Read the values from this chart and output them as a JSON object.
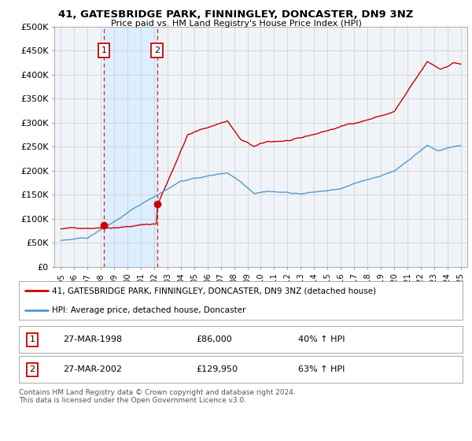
{
  "title1": "41, GATESBRIDGE PARK, FINNINGLEY, DONCASTER, DN9 3NZ",
  "title2": "Price paid vs. HM Land Registry's House Price Index (HPI)",
  "legend_label1": "41, GATESBRIDGE PARK, FINNINGLEY, DONCASTER, DN9 3NZ (detached house)",
  "legend_label2": "HPI: Average price, detached house, Doncaster",
  "sale1_date": "27-MAR-1998",
  "sale1_price": "£86,000",
  "sale1_hpi": "40% ↑ HPI",
  "sale2_date": "27-MAR-2002",
  "sale2_price": "£129,950",
  "sale2_hpi": "63% ↑ HPI",
  "footnote": "Contains HM Land Registry data © Crown copyright and database right 2024.\nThis data is licensed under the Open Government Licence v3.0.",
  "line1_color": "#cc0000",
  "line2_color": "#5599cc",
  "shade_color": "#ddeeff",
  "background_color": "#ffffff",
  "grid_color": "#cccccc",
  "sale_vline_color": "#cc0000",
  "ylim": [
    0,
    500000
  ],
  "ytick_vals": [
    0,
    50000,
    100000,
    150000,
    200000,
    250000,
    300000,
    350000,
    400000,
    450000,
    500000
  ],
  "ytick_labels": [
    "£0",
    "£50K",
    "£100K",
    "£150K",
    "£200K",
    "£250K",
    "£300K",
    "£350K",
    "£400K",
    "£450K",
    "£500K"
  ],
  "sale1_year": 1998.22,
  "sale1_price_val": 86000,
  "sale2_year": 2002.22,
  "sale2_price_val": 129950
}
